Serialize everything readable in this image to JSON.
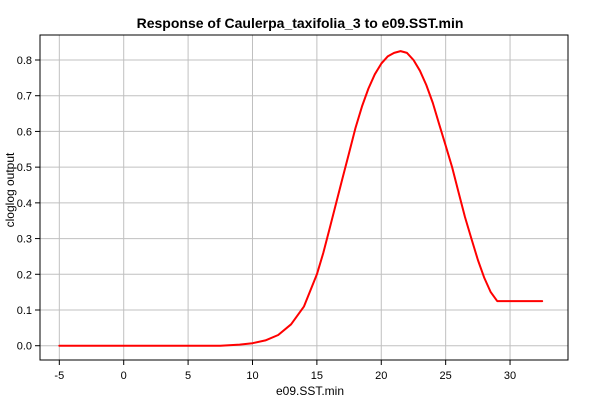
{
  "chart_data": {
    "type": "line",
    "title": "Response of Caulerpa_taxifolia_3 to e09.SST.min",
    "xlabel": "e09.SST.min",
    "ylabel": "cloglog output",
    "xlim": [
      -6.5,
      34.5
    ],
    "ylim": [
      -0.04,
      0.87
    ],
    "x_ticks": [
      -5,
      0,
      5,
      10,
      15,
      20,
      25,
      30
    ],
    "y_ticks": [
      0.0,
      0.1,
      0.2,
      0.3,
      0.4,
      0.5,
      0.6,
      0.7,
      0.8
    ],
    "x_tick_labels": [
      "-5",
      "0",
      "5",
      "10",
      "15",
      "20",
      "25",
      "30"
    ],
    "y_tick_labels": [
      "0.0",
      "0.1",
      "0.2",
      "0.3",
      "0.4",
      "0.5",
      "0.6",
      "0.7",
      "0.8"
    ],
    "grid": true,
    "series": [
      {
        "color": "#ff0000",
        "x": [
          -5,
          -2.5,
          0,
          2.5,
          5,
          7.5,
          9,
          10,
          11,
          12,
          13,
          14,
          15,
          15.5,
          16,
          16.5,
          17,
          17.5,
          18,
          18.5,
          19,
          19.5,
          20,
          20.5,
          21,
          21.5,
          22,
          22.5,
          23,
          23.5,
          24,
          24.5,
          25,
          25.5,
          26,
          26.5,
          27,
          27.5,
          28,
          28.5,
          29,
          29.5,
          30,
          31,
          32.5
        ],
        "y": [
          0.0,
          0.0,
          0.0,
          0.0,
          0.0,
          0.0,
          0.003,
          0.007,
          0.015,
          0.03,
          0.06,
          0.11,
          0.2,
          0.26,
          0.33,
          0.4,
          0.47,
          0.54,
          0.61,
          0.67,
          0.72,
          0.76,
          0.79,
          0.81,
          0.82,
          0.825,
          0.82,
          0.8,
          0.77,
          0.73,
          0.68,
          0.62,
          0.56,
          0.5,
          0.43,
          0.36,
          0.3,
          0.24,
          0.19,
          0.15,
          0.125,
          0.125,
          0.125,
          0.125,
          0.125
        ]
      }
    ]
  }
}
